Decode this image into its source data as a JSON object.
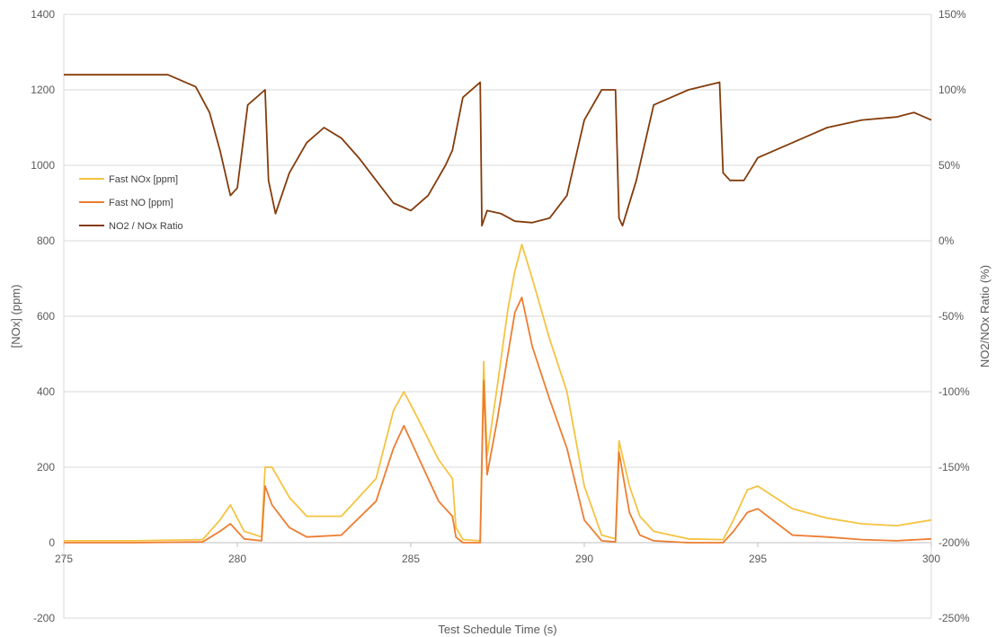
{
  "chart_data": {
    "type": "line",
    "title": "",
    "xlabel": "Test Schedule Time (s)",
    "ylabel": "[NOx] (ppm)",
    "y2label": "NO2/NOx Ratio (%)",
    "xlim": [
      275,
      300
    ],
    "ylim": [
      -200,
      1400
    ],
    "y2lim": [
      -250,
      150
    ],
    "x_ticks": [
      275,
      280,
      285,
      290,
      295,
      300
    ],
    "y_ticks": [
      -200,
      0,
      200,
      400,
      600,
      800,
      1000,
      1200,
      1400
    ],
    "y2_ticks": [
      -250,
      -200,
      -150,
      -100,
      -50,
      0,
      50,
      100,
      150
    ],
    "y2_tick_labels": [
      "-250%",
      "-200%",
      "-150%",
      "-100%",
      "-50%",
      "0%",
      "50%",
      "100%",
      "150%"
    ],
    "grid": true,
    "legend": "upper-left",
    "series": [
      {
        "name": "Fast NOx [ppm]",
        "axis": "left",
        "color": "#F5C342",
        "x": [
          275,
          277,
          279,
          279.5,
          279.8,
          280.2,
          280.7,
          280.8,
          281.0,
          281.5,
          282,
          283,
          284,
          284.5,
          284.8,
          285.2,
          285.8,
          286.2,
          286.3,
          286.5,
          287.0,
          287.1,
          287.2,
          287.5,
          287.8,
          288.0,
          288.2,
          288.5,
          289,
          289.5,
          290,
          290.5,
          290.9,
          291.0,
          291.3,
          291.6,
          292,
          293,
          294,
          294.3,
          294.7,
          295,
          296,
          297,
          298,
          299,
          300
        ],
        "y": [
          5,
          5,
          8,
          60,
          100,
          30,
          15,
          200,
          200,
          120,
          70,
          70,
          170,
          350,
          400,
          330,
          220,
          170,
          40,
          8,
          5,
          480,
          230,
          420,
          620,
          720,
          790,
          700,
          540,
          400,
          150,
          20,
          10,
          270,
          150,
          70,
          30,
          10,
          8,
          60,
          140,
          150,
          90,
          65,
          50,
          45,
          60
        ]
      },
      {
        "name": "Fast NO [ppm]",
        "axis": "left",
        "color": "#ED7D31",
        "x": [
          275,
          277,
          279,
          279.5,
          279.8,
          280.2,
          280.7,
          280.8,
          281.0,
          281.5,
          282,
          283,
          284,
          284.5,
          284.8,
          285.2,
          285.8,
          286.2,
          286.3,
          286.5,
          287.0,
          287.1,
          287.2,
          287.5,
          287.8,
          288.0,
          288.2,
          288.5,
          289,
          289.5,
          290,
          290.5,
          290.9,
          291.0,
          291.3,
          291.6,
          292,
          293,
          294,
          294.3,
          294.7,
          295,
          296,
          297,
          298,
          299,
          300
        ],
        "y": [
          0,
          0,
          2,
          30,
          50,
          10,
          5,
          150,
          100,
          40,
          15,
          20,
          110,
          250,
          310,
          230,
          110,
          70,
          15,
          0,
          0,
          430,
          180,
          330,
          500,
          610,
          650,
          520,
          380,
          250,
          60,
          5,
          2,
          240,
          80,
          20,
          5,
          0,
          0,
          30,
          80,
          90,
          20,
          15,
          8,
          5,
          10
        ]
      },
      {
        "name": "NO2 / NOx Ratio",
        "axis": "right",
        "color": "#843C0C",
        "x": [
          275,
          276,
          277,
          278,
          278.8,
          279.2,
          279.5,
          279.8,
          280.0,
          280.3,
          280.8,
          280.9,
          281.1,
          281.5,
          282,
          282.5,
          283,
          283.5,
          284,
          284.5,
          285,
          285.5,
          286,
          286.2,
          286.5,
          287.0,
          287.05,
          287.2,
          287.6,
          288,
          288.5,
          289,
          289.5,
          290,
          290.5,
          290.9,
          291.0,
          291.1,
          291.5,
          292,
          293,
          293.9,
          294.0,
          294.2,
          294.6,
          295,
          296,
          297,
          298,
          299,
          299.5,
          300
        ],
        "y": [
          110,
          110,
          110,
          110,
          102,
          85,
          60,
          30,
          35,
          90,
          100,
          40,
          18,
          45,
          65,
          75,
          68,
          55,
          40,
          25,
          20,
          30,
          50,
          60,
          95,
          105,
          10,
          20,
          18,
          13,
          12,
          15,
          30,
          80,
          100,
          100,
          15,
          10,
          40,
          90,
          100,
          105,
          45,
          40,
          40,
          55,
          65,
          75,
          80,
          82,
          85,
          80
        ]
      }
    ]
  }
}
